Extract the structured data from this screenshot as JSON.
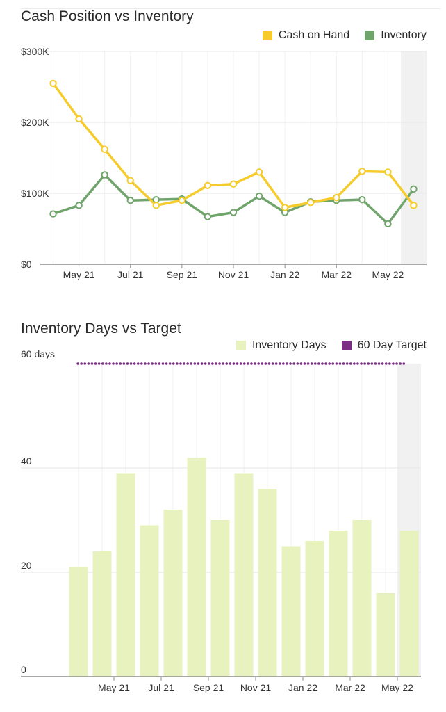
{
  "charts": [
    {
      "title": "Cash Position vs Inventory",
      "legend": [
        {
          "label": "Cash on Hand",
          "color": "#F5CC2C"
        },
        {
          "label": "Inventory",
          "color": "#6FA46A"
        }
      ]
    },
    {
      "title": "Inventory Days vs Target",
      "legend": [
        {
          "label": "Inventory Days",
          "color": "#E8F2BE"
        },
        {
          "label": "60 Day Target",
          "color": "#7B2D86"
        }
      ]
    }
  ],
  "chart_data": [
    {
      "type": "line",
      "title": "Cash Position vs Inventory",
      "x": [
        "Apr 21",
        "May 21",
        "Jun 21",
        "Jul 21",
        "Aug 21",
        "Sep 21",
        "Oct 21",
        "Nov 21",
        "Dec 21",
        "Jan 22",
        "Feb 22",
        "Mar 22",
        "Apr 22",
        "May 22",
        "Jun 22"
      ],
      "x_tick_labels": [
        "May 21",
        "Jul 21",
        "Sep 21",
        "Nov 21",
        "Jan 22",
        "Mar 22",
        "May 22"
      ],
      "y_tick_labels": [
        "$0",
        "$100K",
        "$200K",
        "$300K"
      ],
      "ylim": [
        0,
        300000
      ],
      "series": [
        {
          "name": "Cash on Hand",
          "color": "#F5CC2C",
          "values": [
            255000,
            205000,
            162000,
            118000,
            83000,
            90000,
            111000,
            113000,
            130000,
            80000,
            87000,
            94000,
            131000,
            130000,
            83000
          ]
        },
        {
          "name": "Inventory",
          "color": "#6FA46A",
          "values": [
            71000,
            83000,
            126000,
            90000,
            91000,
            92000,
            67000,
            73000,
            96000,
            73000,
            88000,
            90000,
            91000,
            57000,
            106000
          ]
        }
      ],
      "highlight_last_period": true,
      "legend_position": "top-right",
      "grid": true
    },
    {
      "type": "bar",
      "title": "Inventory Days vs Target",
      "x": [
        "Apr 21",
        "May 21",
        "Jun 21",
        "Jul 21",
        "Aug 21",
        "Sep 21",
        "Oct 21",
        "Nov 21",
        "Dec 21",
        "Jan 22",
        "Feb 22",
        "Mar 22",
        "Apr 22",
        "May 22",
        "Jun 22"
      ],
      "x_tick_labels": [
        "May 21",
        "Jul 21",
        "Sep 21",
        "Nov 21",
        "Jan 22",
        "Mar 22",
        "May 22"
      ],
      "y_tick_labels": [
        "0",
        "20",
        "40",
        "60 days"
      ],
      "ylim": [
        0,
        60
      ],
      "series": [
        {
          "name": "Inventory Days",
          "color": "#E8F2BE",
          "values": [
            21,
            24,
            39,
            29,
            32,
            42,
            30,
            39,
            36,
            25,
            26,
            28,
            30,
            16,
            28
          ]
        },
        {
          "name": "60 Day Target",
          "color": "#7B2D86",
          "type": "dotted-line",
          "value": 60
        }
      ],
      "highlight_last_period": true,
      "legend_position": "top-right",
      "grid": true
    }
  ]
}
